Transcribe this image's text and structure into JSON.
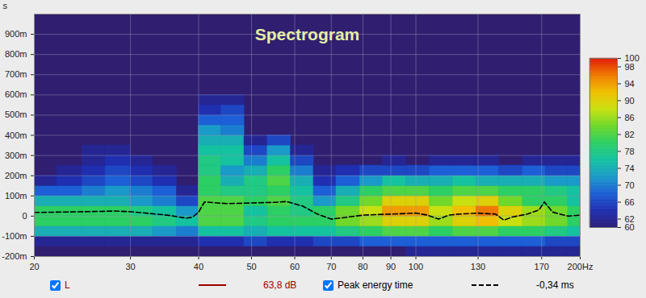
{
  "chart_data": {
    "type": "heatmap",
    "title": "Spectrogram",
    "y_label": "s",
    "log": "x",
    "grid": true,
    "xlim": [
      20,
      200
    ],
    "ylim": [
      -0.2,
      1.0
    ],
    "xticks": [
      20,
      30,
      40,
      50,
      60,
      70,
      80,
      90,
      100,
      130,
      170,
      {
        "value": 200,
        "label": "200Hz"
      }
    ],
    "yticks": [
      {
        "value": -0.2,
        "label": "-200m"
      },
      {
        "value": -0.1,
        "label": "-100m"
      },
      0,
      {
        "value": 0.1,
        "label": "100m"
      },
      {
        "value": 0.2,
        "label": "200m"
      },
      {
        "value": 0.3,
        "label": "300m"
      },
      {
        "value": 0.4,
        "label": "400m"
      },
      {
        "value": 0.5,
        "label": "500m"
      },
      {
        "value": 0.6,
        "label": "600m"
      },
      {
        "value": 0.7,
        "label": "700m"
      },
      {
        "value": 0.8,
        "label": "800m"
      },
      {
        "value": 0.9,
        "label": "900m"
      }
    ],
    "x_edges": [
      20,
      22,
      24.5,
      27,
      30,
      33,
      36.5,
      40,
      44,
      48.5,
      53.5,
      59,
      65,
      71.5,
      79,
      87,
      96,
      106,
      117,
      129,
      142,
      157,
      173,
      190,
      200
    ],
    "y_edges": [
      -0.2,
      -0.15,
      -0.1,
      -0.05,
      0,
      0.05,
      0.1,
      0.15,
      0.2,
      0.25,
      0.3,
      0.35,
      0.4,
      0.45,
      0.5,
      0.55,
      0.6
    ],
    "cells": [
      [
        null,
        null,
        null,
        null,
        null,
        null,
        null,
        null,
        null,
        null,
        null,
        null,
        null,
        null,
        null,
        null,
        62,
        62,
        62,
        62,
        62,
        62,
        62,
        62
      ],
      [
        62,
        62,
        62,
        62,
        62,
        62,
        62,
        64,
        64,
        66,
        64,
        64,
        66,
        66,
        68,
        68,
        68,
        68,
        68,
        68,
        68,
        68,
        66,
        66
      ],
      [
        74,
        74,
        74,
        74,
        74,
        72,
        70,
        76,
        76,
        74,
        76,
        76,
        76,
        78,
        80,
        82,
        82,
        80,
        82,
        82,
        80,
        80,
        78,
        76
      ],
      [
        80,
        80,
        80,
        80,
        80,
        78,
        76,
        82,
        82,
        78,
        80,
        80,
        80,
        84,
        86,
        90,
        90,
        86,
        90,
        92,
        88,
        86,
        84,
        80
      ],
      [
        80,
        80,
        80,
        80,
        78,
        76,
        72,
        82,
        82,
        76,
        80,
        78,
        80,
        84,
        88,
        94,
        94,
        88,
        92,
        96,
        90,
        86,
        84,
        80
      ],
      [
        74,
        74,
        74,
        74,
        72,
        70,
        66,
        82,
        82,
        80,
        82,
        78,
        72,
        78,
        84,
        90,
        90,
        84,
        88,
        90,
        84,
        80,
        80,
        76
      ],
      [
        68,
        68,
        70,
        72,
        70,
        68,
        62,
        80,
        78,
        78,
        80,
        76,
        68,
        74,
        80,
        82,
        82,
        80,
        82,
        82,
        80,
        80,
        78,
        76
      ],
      [
        62,
        64,
        66,
        68,
        66,
        64,
        null,
        80,
        74,
        78,
        82,
        74,
        64,
        68,
        72,
        76,
        74,
        74,
        76,
        74,
        74,
        74,
        72,
        72
      ],
      [
        null,
        62,
        64,
        66,
        64,
        62,
        null,
        78,
        72,
        74,
        80,
        70,
        62,
        64,
        66,
        66,
        66,
        68,
        68,
        68,
        66,
        68,
        66,
        66
      ],
      [
        null,
        null,
        62,
        64,
        62,
        null,
        null,
        78,
        76,
        70,
        76,
        66,
        null,
        null,
        null,
        62,
        null,
        62,
        62,
        62,
        null,
        62,
        62,
        62
      ],
      [
        null,
        null,
        62,
        62,
        null,
        null,
        null,
        76,
        76,
        66,
        72,
        62,
        null,
        null,
        null,
        null,
        null,
        null,
        null,
        null,
        null,
        null,
        null,
        null
      ],
      [
        null,
        null,
        null,
        null,
        null,
        null,
        null,
        74,
        74,
        62,
        66,
        null,
        null,
        null,
        null,
        null,
        null,
        null,
        null,
        null,
        null,
        null,
        null,
        null
      ],
      [
        null,
        null,
        null,
        null,
        null,
        null,
        null,
        72,
        70,
        null,
        null,
        null,
        null,
        null,
        null,
        null,
        null,
        null,
        null,
        null,
        null,
        null,
        null,
        null
      ],
      [
        null,
        null,
        null,
        null,
        null,
        null,
        null,
        68,
        68,
        null,
        null,
        null,
        null,
        null,
        null,
        null,
        null,
        null,
        null,
        null,
        null,
        null,
        null,
        null
      ],
      [
        null,
        null,
        null,
        null,
        null,
        null,
        null,
        64,
        66,
        null,
        null,
        null,
        null,
        null,
        null,
        null,
        null,
        null,
        null,
        null,
        null,
        null,
        null,
        null
      ],
      [
        null,
        null,
        null,
        null,
        null,
        null,
        null,
        62,
        62,
        null,
        null,
        null,
        null,
        null,
        null,
        null,
        null,
        null,
        null,
        null,
        null,
        null,
        null,
        null
      ]
    ],
    "colorbar": {
      "range": [
        60,
        100
      ],
      "ticks": [
        60,
        62,
        66,
        70,
        74,
        78,
        82,
        86,
        90,
        94,
        98,
        100
      ]
    },
    "series": [
      {
        "name": "Peak energy time",
        "color": "#000000",
        "line_style": "dashed",
        "x": [
          20,
          25,
          28,
          30,
          35,
          38,
          39,
          40,
          41,
          45,
          50,
          55,
          58,
          62,
          66,
          70,
          75,
          80,
          90,
          100,
          105,
          110,
          115,
          120,
          130,
          140,
          145,
          150,
          160,
          168,
          172,
          178,
          190,
          200
        ],
        "values": [
          0.018,
          0.022,
          0.025,
          0.022,
          0.005,
          -0.01,
          -0.005,
          0.02,
          0.07,
          0.062,
          0.065,
          0.068,
          0.072,
          0.05,
          0.01,
          -0.015,
          -0.005,
          0.005,
          0.01,
          0.015,
          0.005,
          -0.015,
          0.005,
          0.01,
          0.015,
          0.01,
          -0.02,
          -0.005,
          0.01,
          0.03,
          0.07,
          0.02,
          0.0,
          0.005
        ]
      }
    ],
    "legend_rows": [
      {
        "check": "L",
        "color": "#a00000",
        "line_style": "solid",
        "readout": "63,8 dB"
      },
      {
        "check": "Peak energy time",
        "color": "#000000",
        "line_style": "dashed",
        "readout": "-0,34 ms"
      }
    ]
  }
}
